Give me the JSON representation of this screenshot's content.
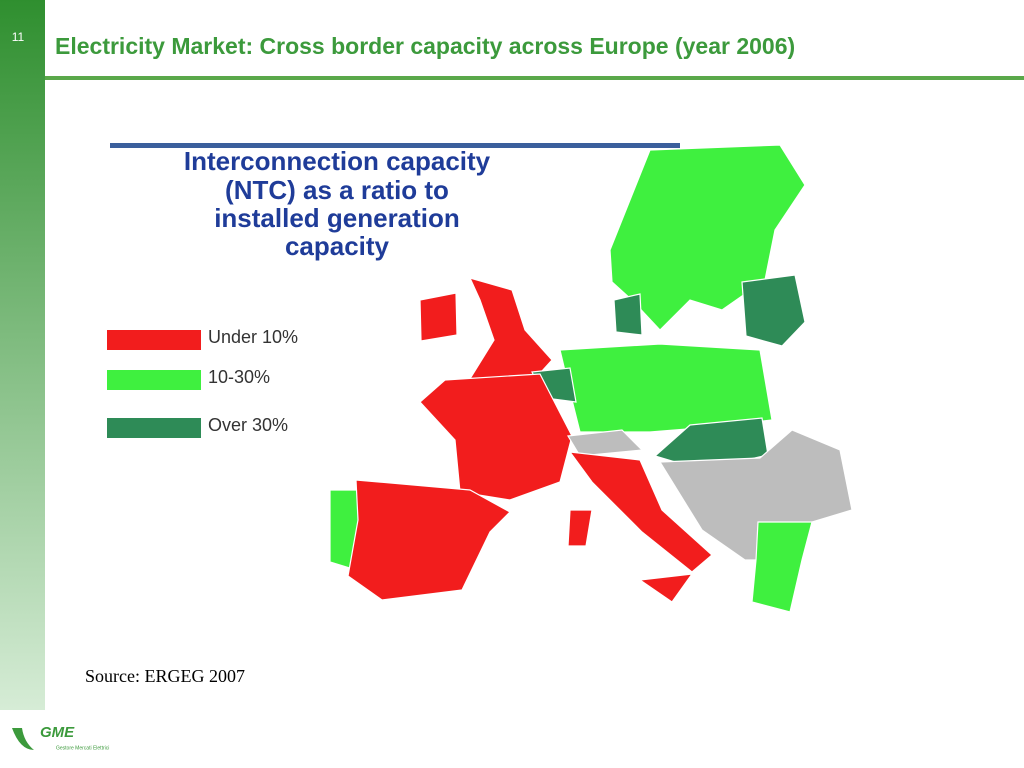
{
  "slide_number": "11",
  "title": "Electricity Market: Cross border capacity across Europe (year 2006)",
  "map": {
    "heading": [
      "Interconnection capacity",
      "(NTC) as a ratio to",
      "installed generation",
      "capacity"
    ],
    "legend": [
      {
        "label": "Under 10%",
        "color": "#f21d1d"
      },
      {
        "label": "10-30%",
        "color": "#3ff03f"
      },
      {
        "label": "Over 30%",
        "color": "#2e8b57"
      }
    ]
  },
  "source": "Source: ERGEG 2007",
  "logo": {
    "name": "GME",
    "subtitle": "Gestore Mercati Elettrici"
  }
}
